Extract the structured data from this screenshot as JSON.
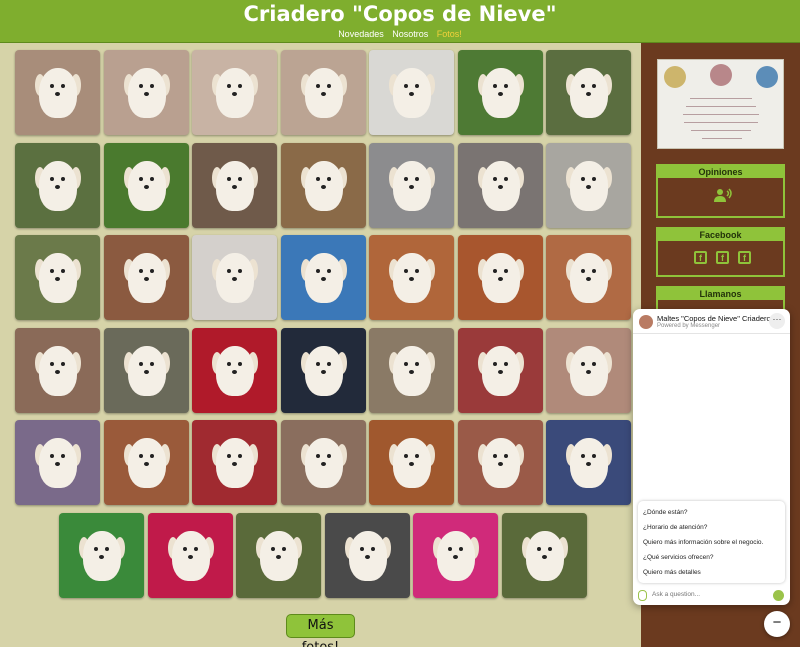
{
  "header": {
    "title": "Criadero \"Copos de Nieve\"",
    "nav": [
      {
        "label": "Novedades",
        "active": false
      },
      {
        "label": "Nosotros",
        "active": false
      },
      {
        "label": "Fotos!",
        "active": true
      }
    ]
  },
  "gallery": {
    "photo_count": 41,
    "more_button": "Más fotos!"
  },
  "sidebar": {
    "opinions_title": "Opiniones",
    "facebook_title": "Facebook",
    "calls_title": "Llamanos"
  },
  "messenger": {
    "page_name": "Maltes \"Copos de Nieve\" Criadero",
    "powered_by": "Powered by Messenger",
    "options": [
      "¿Dónde están?",
      "¿Horario de atención?",
      "Quiero más información sobre el negocio.",
      "¿Qué servicios ofrecen?",
      "Quiero más detalles"
    ],
    "input_placeholder": "Ask a question..."
  },
  "colors": {
    "header_green": "#7fae2e",
    "accent_green": "#8fc33a",
    "sidebar_brown": "#6b3a1f",
    "page_beige": "#d6d3a8",
    "active_nav": "#f3d13b"
  }
}
